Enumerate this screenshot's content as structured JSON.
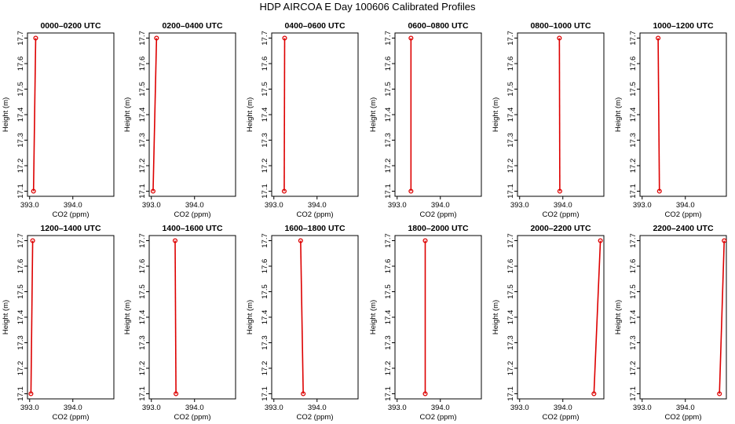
{
  "figure": {
    "title": "HDP AIRCOA E  Day 100606  Calibrated Profiles"
  },
  "colors": {
    "profile": "#dd0000",
    "axes": "#000000"
  },
  "chart_data": [
    {
      "type": "line",
      "title": "0000–0200 UTC",
      "xlabel": "CO2 (ppm)",
      "ylabel": "Height (m)",
      "xlim": [
        392.95,
        394.95
      ],
      "ylim": [
        17.08,
        17.72
      ],
      "xticks": [
        393.0,
        394.0
      ],
      "xtick_labels": [
        "393.0",
        "394.0"
      ],
      "yticks": [
        17.1,
        17.2,
        17.3,
        17.4,
        17.5,
        17.6,
        17.7
      ],
      "ytick_labels": [
        "17.1",
        "17.2",
        "17.3",
        "17.4",
        "17.5",
        "17.6",
        "17.7"
      ],
      "series": [
        {
          "x": [
            393.09,
            393.14
          ],
          "y": [
            17.1,
            17.7
          ]
        }
      ]
    },
    {
      "type": "line",
      "title": "0200–0400 UTC",
      "xlabel": "CO2 (ppm)",
      "ylabel": "Height (m)",
      "xlim": [
        392.95,
        394.95
      ],
      "ylim": [
        17.08,
        17.72
      ],
      "xticks": [
        393.0,
        394.0
      ],
      "xtick_labels": [
        "393.0",
        "394.0"
      ],
      "yticks": [
        17.1,
        17.2,
        17.3,
        17.4,
        17.5,
        17.6,
        17.7
      ],
      "ytick_labels": [
        "17.1",
        "17.2",
        "17.3",
        "17.4",
        "17.5",
        "17.6",
        "17.7"
      ],
      "series": [
        {
          "x": [
            393.04,
            393.12
          ],
          "y": [
            17.1,
            17.7
          ]
        }
      ]
    },
    {
      "type": "line",
      "title": "0400–0600 UTC",
      "xlabel": "CO2 (ppm)",
      "ylabel": "Height (m)",
      "xlim": [
        392.95,
        394.95
      ],
      "ylim": [
        17.08,
        17.72
      ],
      "xticks": [
        393.0,
        394.0
      ],
      "xtick_labels": [
        "393.0",
        "394.0"
      ],
      "yticks": [
        17.1,
        17.2,
        17.3,
        17.4,
        17.5,
        17.6,
        17.7
      ],
      "ytick_labels": [
        "17.1",
        "17.2",
        "17.3",
        "17.4",
        "17.5",
        "17.6",
        "17.7"
      ],
      "series": [
        {
          "x": [
            393.24,
            393.25
          ],
          "y": [
            17.1,
            17.7
          ]
        }
      ]
    },
    {
      "type": "line",
      "title": "0600–0800 UTC",
      "xlabel": "CO2 (ppm)",
      "ylabel": "Height (m)",
      "xlim": [
        392.95,
        394.95
      ],
      "ylim": [
        17.08,
        17.72
      ],
      "xticks": [
        393.0,
        394.0
      ],
      "xtick_labels": [
        "393.0",
        "394.0"
      ],
      "yticks": [
        17.1,
        17.2,
        17.3,
        17.4,
        17.5,
        17.6,
        17.7
      ],
      "ytick_labels": [
        "17.1",
        "17.2",
        "17.3",
        "17.4",
        "17.5",
        "17.6",
        "17.7"
      ],
      "series": [
        {
          "x": [
            393.32,
            393.32
          ],
          "y": [
            17.1,
            17.7
          ]
        }
      ]
    },
    {
      "type": "line",
      "title": "0800–1000 UTC",
      "xlabel": "CO2 (ppm)",
      "ylabel": "Height (m)",
      "xlim": [
        392.95,
        394.95
      ],
      "ylim": [
        17.08,
        17.72
      ],
      "xticks": [
        393.0,
        394.0
      ],
      "xtick_labels": [
        "393.0",
        "394.0"
      ],
      "yticks": [
        17.1,
        17.2,
        17.3,
        17.4,
        17.5,
        17.6,
        17.7
      ],
      "ytick_labels": [
        "17.1",
        "17.2",
        "17.3",
        "17.4",
        "17.5",
        "17.6",
        "17.7"
      ],
      "series": [
        {
          "x": [
            393.93,
            393.92
          ],
          "y": [
            17.1,
            17.7
          ]
        }
      ]
    },
    {
      "type": "line",
      "title": "1000–1200 UTC",
      "xlabel": "CO2 (ppm)",
      "ylabel": "Height (m)",
      "xlim": [
        392.95,
        394.95
      ],
      "ylim": [
        17.08,
        17.72
      ],
      "xticks": [
        393.0,
        394.0
      ],
      "xtick_labels": [
        "393.0",
        "394.0"
      ],
      "yticks": [
        17.1,
        17.2,
        17.3,
        17.4,
        17.5,
        17.6,
        17.7
      ],
      "ytick_labels": [
        "17.1",
        "17.2",
        "17.3",
        "17.4",
        "17.5",
        "17.6",
        "17.7"
      ],
      "series": [
        {
          "x": [
            393.4,
            393.37
          ],
          "y": [
            17.1,
            17.7
          ]
        }
      ]
    },
    {
      "type": "line",
      "title": "1200–1400 UTC",
      "xlabel": "CO2 (ppm)",
      "ylabel": "Height (m)",
      "xlim": [
        392.95,
        394.95
      ],
      "ylim": [
        17.08,
        17.72
      ],
      "xticks": [
        393.0,
        394.0
      ],
      "xtick_labels": [
        "393.0",
        "394.0"
      ],
      "yticks": [
        17.1,
        17.2,
        17.3,
        17.4,
        17.5,
        17.6,
        17.7
      ],
      "ytick_labels": [
        "17.1",
        "17.2",
        "17.3",
        "17.4",
        "17.5",
        "17.6",
        "17.7"
      ],
      "series": [
        {
          "x": [
            393.03,
            393.07
          ],
          "y": [
            17.1,
            17.7
          ]
        }
      ]
    },
    {
      "type": "line",
      "title": "1400–1600 UTC",
      "xlabel": "CO2 (ppm)",
      "ylabel": "Height (m)",
      "xlim": [
        392.95,
        394.95
      ],
      "ylim": [
        17.08,
        17.72
      ],
      "xticks": [
        393.0,
        394.0
      ],
      "xtick_labels": [
        "393.0",
        "394.0"
      ],
      "yticks": [
        17.1,
        17.2,
        17.3,
        17.4,
        17.5,
        17.6,
        17.7
      ],
      "ytick_labels": [
        "17.1",
        "17.2",
        "17.3",
        "17.4",
        "17.5",
        "17.6",
        "17.7"
      ],
      "series": [
        {
          "x": [
            393.57,
            393.55
          ],
          "y": [
            17.1,
            17.7
          ]
        }
      ]
    },
    {
      "type": "line",
      "title": "1600–1800 UTC",
      "xlabel": "CO2 (ppm)",
      "ylabel": "Height (m)",
      "xlim": [
        392.95,
        394.95
      ],
      "ylim": [
        17.08,
        17.72
      ],
      "xticks": [
        393.0,
        394.0
      ],
      "xtick_labels": [
        "393.0",
        "394.0"
      ],
      "yticks": [
        17.1,
        17.2,
        17.3,
        17.4,
        17.5,
        17.6,
        17.7
      ],
      "ytick_labels": [
        "17.1",
        "17.2",
        "17.3",
        "17.4",
        "17.5",
        "17.6",
        "17.7"
      ],
      "series": [
        {
          "x": [
            393.68,
            393.62
          ],
          "y": [
            17.1,
            17.7
          ]
        }
      ]
    },
    {
      "type": "line",
      "title": "1800–2000 UTC",
      "xlabel": "CO2 (ppm)",
      "ylabel": "Height (m)",
      "xlim": [
        392.95,
        394.95
      ],
      "ylim": [
        17.08,
        17.72
      ],
      "xticks": [
        393.0,
        394.0
      ],
      "xtick_labels": [
        "393.0",
        "394.0"
      ],
      "yticks": [
        17.1,
        17.2,
        17.3,
        17.4,
        17.5,
        17.6,
        17.7
      ],
      "ytick_labels": [
        "17.1",
        "17.2",
        "17.3",
        "17.4",
        "17.5",
        "17.6",
        "17.7"
      ],
      "series": [
        {
          "x": [
            393.65,
            393.65
          ],
          "y": [
            17.1,
            17.7
          ]
        }
      ]
    },
    {
      "type": "line",
      "title": "2000–2200 UTC",
      "xlabel": "CO2 (ppm)",
      "ylabel": "Height (m)",
      "xlim": [
        392.95,
        394.95
      ],
      "ylim": [
        17.08,
        17.72
      ],
      "xticks": [
        393.0,
        394.0
      ],
      "xtick_labels": [
        "393.0",
        "394.0"
      ],
      "yticks": [
        17.1,
        17.2,
        17.3,
        17.4,
        17.5,
        17.6,
        17.7
      ],
      "ytick_labels": [
        "17.1",
        "17.2",
        "17.3",
        "17.4",
        "17.5",
        "17.6",
        "17.7"
      ],
      "series": [
        {
          "x": [
            394.72,
            394.87
          ],
          "y": [
            17.1,
            17.7
          ]
        }
      ]
    },
    {
      "type": "line",
      "title": "2200–2400 UTC",
      "xlabel": "CO2 (ppm)",
      "ylabel": "Height (m)",
      "xlim": [
        392.95,
        394.95
      ],
      "ylim": [
        17.08,
        17.72
      ],
      "xticks": [
        393.0,
        394.0
      ],
      "xtick_labels": [
        "393.0",
        "394.0"
      ],
      "yticks": [
        17.1,
        17.2,
        17.3,
        17.4,
        17.5,
        17.6,
        17.7
      ],
      "ytick_labels": [
        "17.1",
        "17.2",
        "17.3",
        "17.4",
        "17.5",
        "17.6",
        "17.7"
      ],
      "series": [
        {
          "x": [
            394.79,
            394.9
          ],
          "y": [
            17.1,
            17.7
          ]
        }
      ]
    }
  ]
}
